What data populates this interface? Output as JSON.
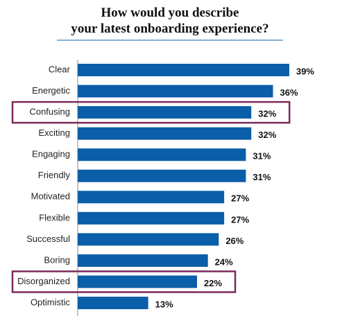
{
  "chart_data": {
    "type": "bar",
    "orientation": "horizontal",
    "title": [
      "How would you describe",
      "your latest onboarding experience?"
    ],
    "categories": [
      "Clear",
      "Energetic",
      "Confusing",
      "Exciting",
      "Engaging",
      "Friendly",
      "Motivated",
      "Flexible",
      "Successful",
      "Boring",
      "Disorganized",
      "Optimistic"
    ],
    "values": [
      39,
      36,
      32,
      32,
      31,
      31,
      27,
      27,
      26,
      24,
      22,
      13
    ],
    "value_labels": [
      "39%",
      "36%",
      "32%",
      "32%",
      "31%",
      "31%",
      "27%",
      "27%",
      "26%",
      "24%",
      "22%",
      "13%"
    ],
    "color": "#0b5ea8",
    "highlight_indices": [
      2,
      10
    ],
    "highlight_color": "#7a2a5a"
  }
}
